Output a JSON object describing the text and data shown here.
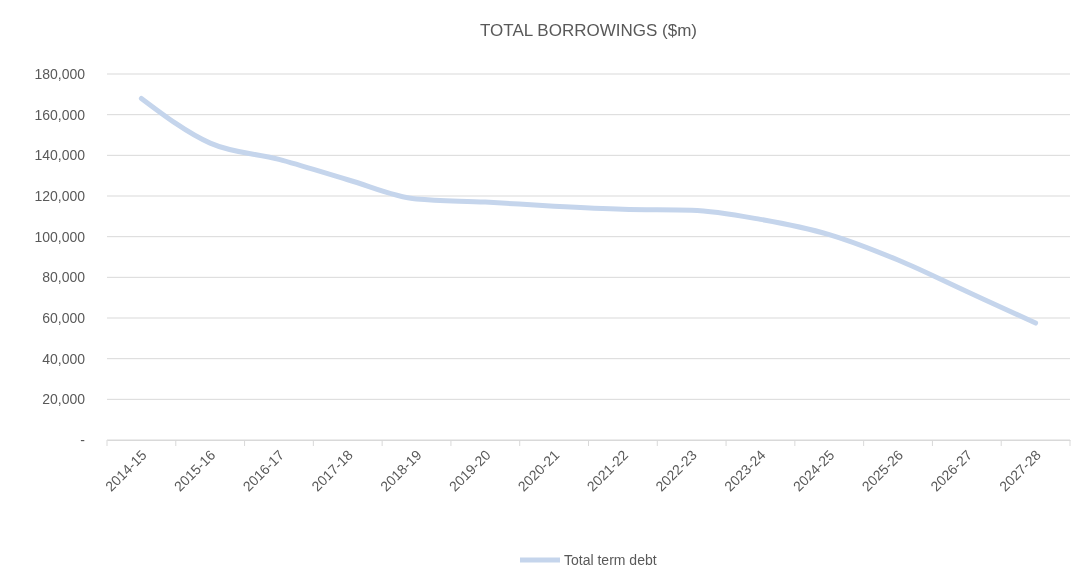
{
  "chart_data": {
    "type": "line",
    "title": "TOTAL BORROWINGS ($m)",
    "categories": [
      "2014-15",
      "2015-16",
      "2016-17",
      "2017-18",
      "2018-19",
      "2019-20",
      "2020-21",
      "2021-22",
      "2022-23",
      "2023-24",
      "2024-25",
      "2025-26",
      "2026-27",
      "2027-28"
    ],
    "series": [
      {
        "name": "Total term debt",
        "color": "#c5d5ec",
        "values": [
          168000,
          146000,
          138000,
          128000,
          118500,
          117000,
          115000,
          113500,
          113000,
          108500,
          101000,
          88500,
          73000,
          57500
        ]
      }
    ],
    "ylim": [
      0,
      180000
    ],
    "yticks": [
      {
        "value": 0,
        "label": "-"
      },
      {
        "value": 20000,
        "label": "20,000"
      },
      {
        "value": 40000,
        "label": "40,000"
      },
      {
        "value": 60000,
        "label": "60,000"
      },
      {
        "value": 80000,
        "label": "80,000"
      },
      {
        "value": 100000,
        "label": "100,000"
      },
      {
        "value": 120000,
        "label": "120,000"
      },
      {
        "value": 140000,
        "label": "140,000"
      },
      {
        "value": 160000,
        "label": "160,000"
      },
      {
        "value": 180000,
        "label": "180,000"
      }
    ],
    "grid": "y",
    "legend": "bottom"
  }
}
